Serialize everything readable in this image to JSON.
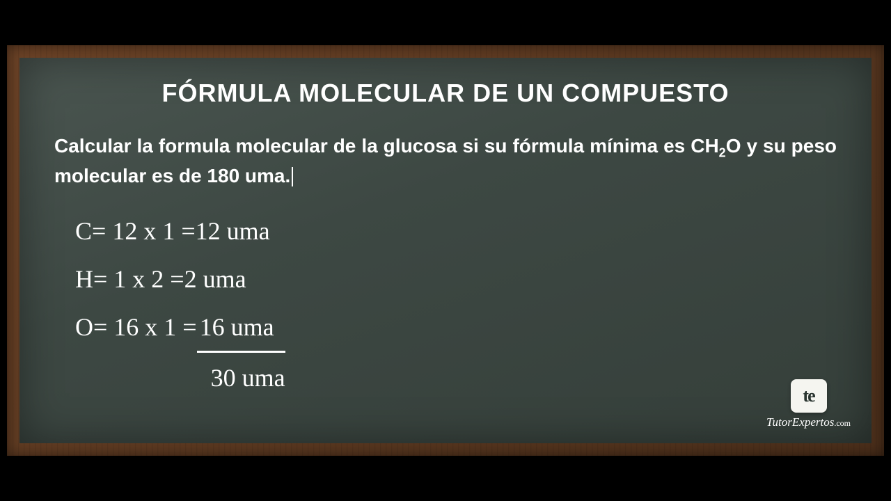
{
  "colors": {
    "background": "#000000",
    "frame_gradient_start": "#6b4226",
    "frame_gradient_end": "#4a2e1a",
    "chalkboard_start": "#4a5550",
    "chalkboard_end": "#353f3a",
    "text": "#ffffff",
    "logo_box": "#f5f5f0",
    "logo_text": "#2a3530"
  },
  "typography": {
    "title_fontsize": 36,
    "problem_fontsize": 28,
    "handwritten_fontsize": 36,
    "handwritten_family": "Comic Sans MS"
  },
  "title": "FÓRMULA MOLECULAR DE UN COMPUESTO",
  "problem": {
    "part1": "Calcular la formula molecular de la glucosa si su fórmula mínima es CH",
    "sub": "2",
    "part2": "O y su peso molecular es de 180 uma."
  },
  "calculations": {
    "lines": [
      {
        "element": "C",
        "expr": " = 12 x 1 = ",
        "result": "12 uma"
      },
      {
        "element": "H",
        "expr": " = 1 x 2 =  ",
        "result": "2 uma"
      },
      {
        "element": "O",
        "expr": " = 16 x 1 = ",
        "result": "16 uma"
      }
    ],
    "sum": "30 uma"
  },
  "logo": {
    "abbrev": "te",
    "name": "TutorExpertos",
    "suffix": ".com"
  }
}
